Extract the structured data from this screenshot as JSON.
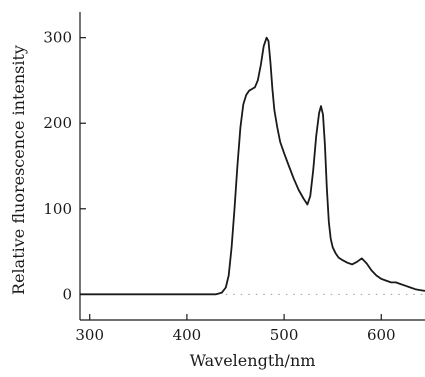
{
  "chart_data": {
    "type": "line",
    "title": "",
    "xlabel": "Wavelength/nm",
    "ylabel": "Relative fluorescence intensity",
    "xlim": [
      290,
      645
    ],
    "ylim": [
      -30,
      330
    ],
    "xticks": [
      300,
      400,
      500,
      600
    ],
    "yticks": [
      0,
      100,
      200,
      300
    ],
    "grid": false,
    "line_color": "#1a1a1a",
    "baseline_dots_color": "#9a9a9a",
    "series": [
      {
        "x": [
          290,
          350,
          400,
          430,
          436,
          440,
          443,
          446,
          449,
          452,
          455,
          458,
          461,
          464,
          467,
          470,
          473,
          476,
          479,
          482,
          484,
          486,
          488,
          490,
          493,
          496,
          500,
          505,
          510,
          515,
          520,
          524,
          527,
          530,
          533,
          536,
          538,
          540,
          542,
          544,
          546,
          548,
          550,
          553,
          556,
          560,
          565,
          570,
          575,
          580,
          585,
          590,
          595,
          600,
          605,
          610,
          615,
          620,
          625,
          630,
          635,
          640,
          645
        ],
        "y": [
          0,
          0,
          0,
          0,
          2,
          8,
          22,
          55,
          100,
          150,
          195,
          222,
          233,
          238,
          240,
          242,
          250,
          268,
          290,
          300,
          296,
          270,
          240,
          215,
          195,
          178,
          165,
          150,
          135,
          122,
          112,
          105,
          115,
          145,
          185,
          212,
          220,
          210,
          175,
          125,
          85,
          65,
          55,
          48,
          43,
          40,
          37,
          35,
          38,
          42,
          36,
          28,
          22,
          18,
          16,
          14,
          14,
          12,
          10,
          8,
          6,
          5,
          4
        ]
      }
    ]
  }
}
